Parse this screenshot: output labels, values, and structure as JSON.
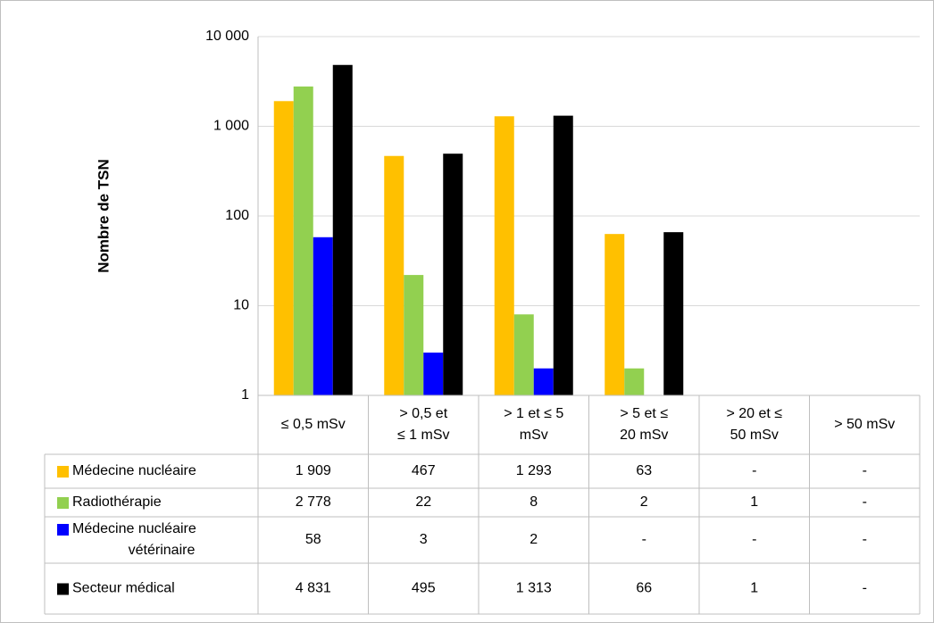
{
  "chart_data": {
    "type": "bar",
    "log_scale": true,
    "ylabel": "Nombre de TSN",
    "ylim": [
      1,
      10000
    ],
    "y_ticks": [
      "1",
      "10",
      "100",
      "1 000",
      "10 000"
    ],
    "y_tick_values": [
      1,
      10,
      100,
      1000,
      10000
    ],
    "grid": true,
    "legend": "table-below",
    "categories": [
      [
        "≤ 0,5 mSv"
      ],
      [
        "> 0,5 et",
        "≤ 1 mSv"
      ],
      [
        "> 1 et ≤ 5",
        "mSv"
      ],
      [
        "> 5 et ≤",
        "20 mSv"
      ],
      [
        "> 20 et ≤",
        "50 mSv"
      ],
      [
        "> 50 mSv"
      ]
    ],
    "series": [
      {
        "name": [
          "Médecine nucléaire"
        ],
        "color": "#FFC000",
        "values": [
          1909,
          467,
          1293,
          63,
          null,
          null
        ],
        "labels": [
          "1 909",
          "467",
          "1 293",
          "63",
          "-",
          "-"
        ]
      },
      {
        "name": [
          "Radiothérapie"
        ],
        "color": "#92D050",
        "values": [
          2778,
          22,
          8,
          2,
          1,
          null
        ],
        "labels": [
          "2 778",
          "22",
          "8",
          "2",
          "1",
          "-"
        ]
      },
      {
        "name": [
          "Médecine nucléaire",
          "vétérinaire"
        ],
        "color": "#0000FF",
        "values": [
          58,
          3,
          2,
          null,
          null,
          null
        ],
        "labels": [
          "58",
          "3",
          "2",
          "-",
          "-",
          "-"
        ]
      },
      {
        "name": [
          "Secteur médical"
        ],
        "color": "#000000",
        "values": [
          4831,
          495,
          1313,
          66,
          1,
          null
        ],
        "labels": [
          "4 831",
          "495",
          "1 313",
          "66",
          "1",
          "-"
        ]
      }
    ]
  }
}
